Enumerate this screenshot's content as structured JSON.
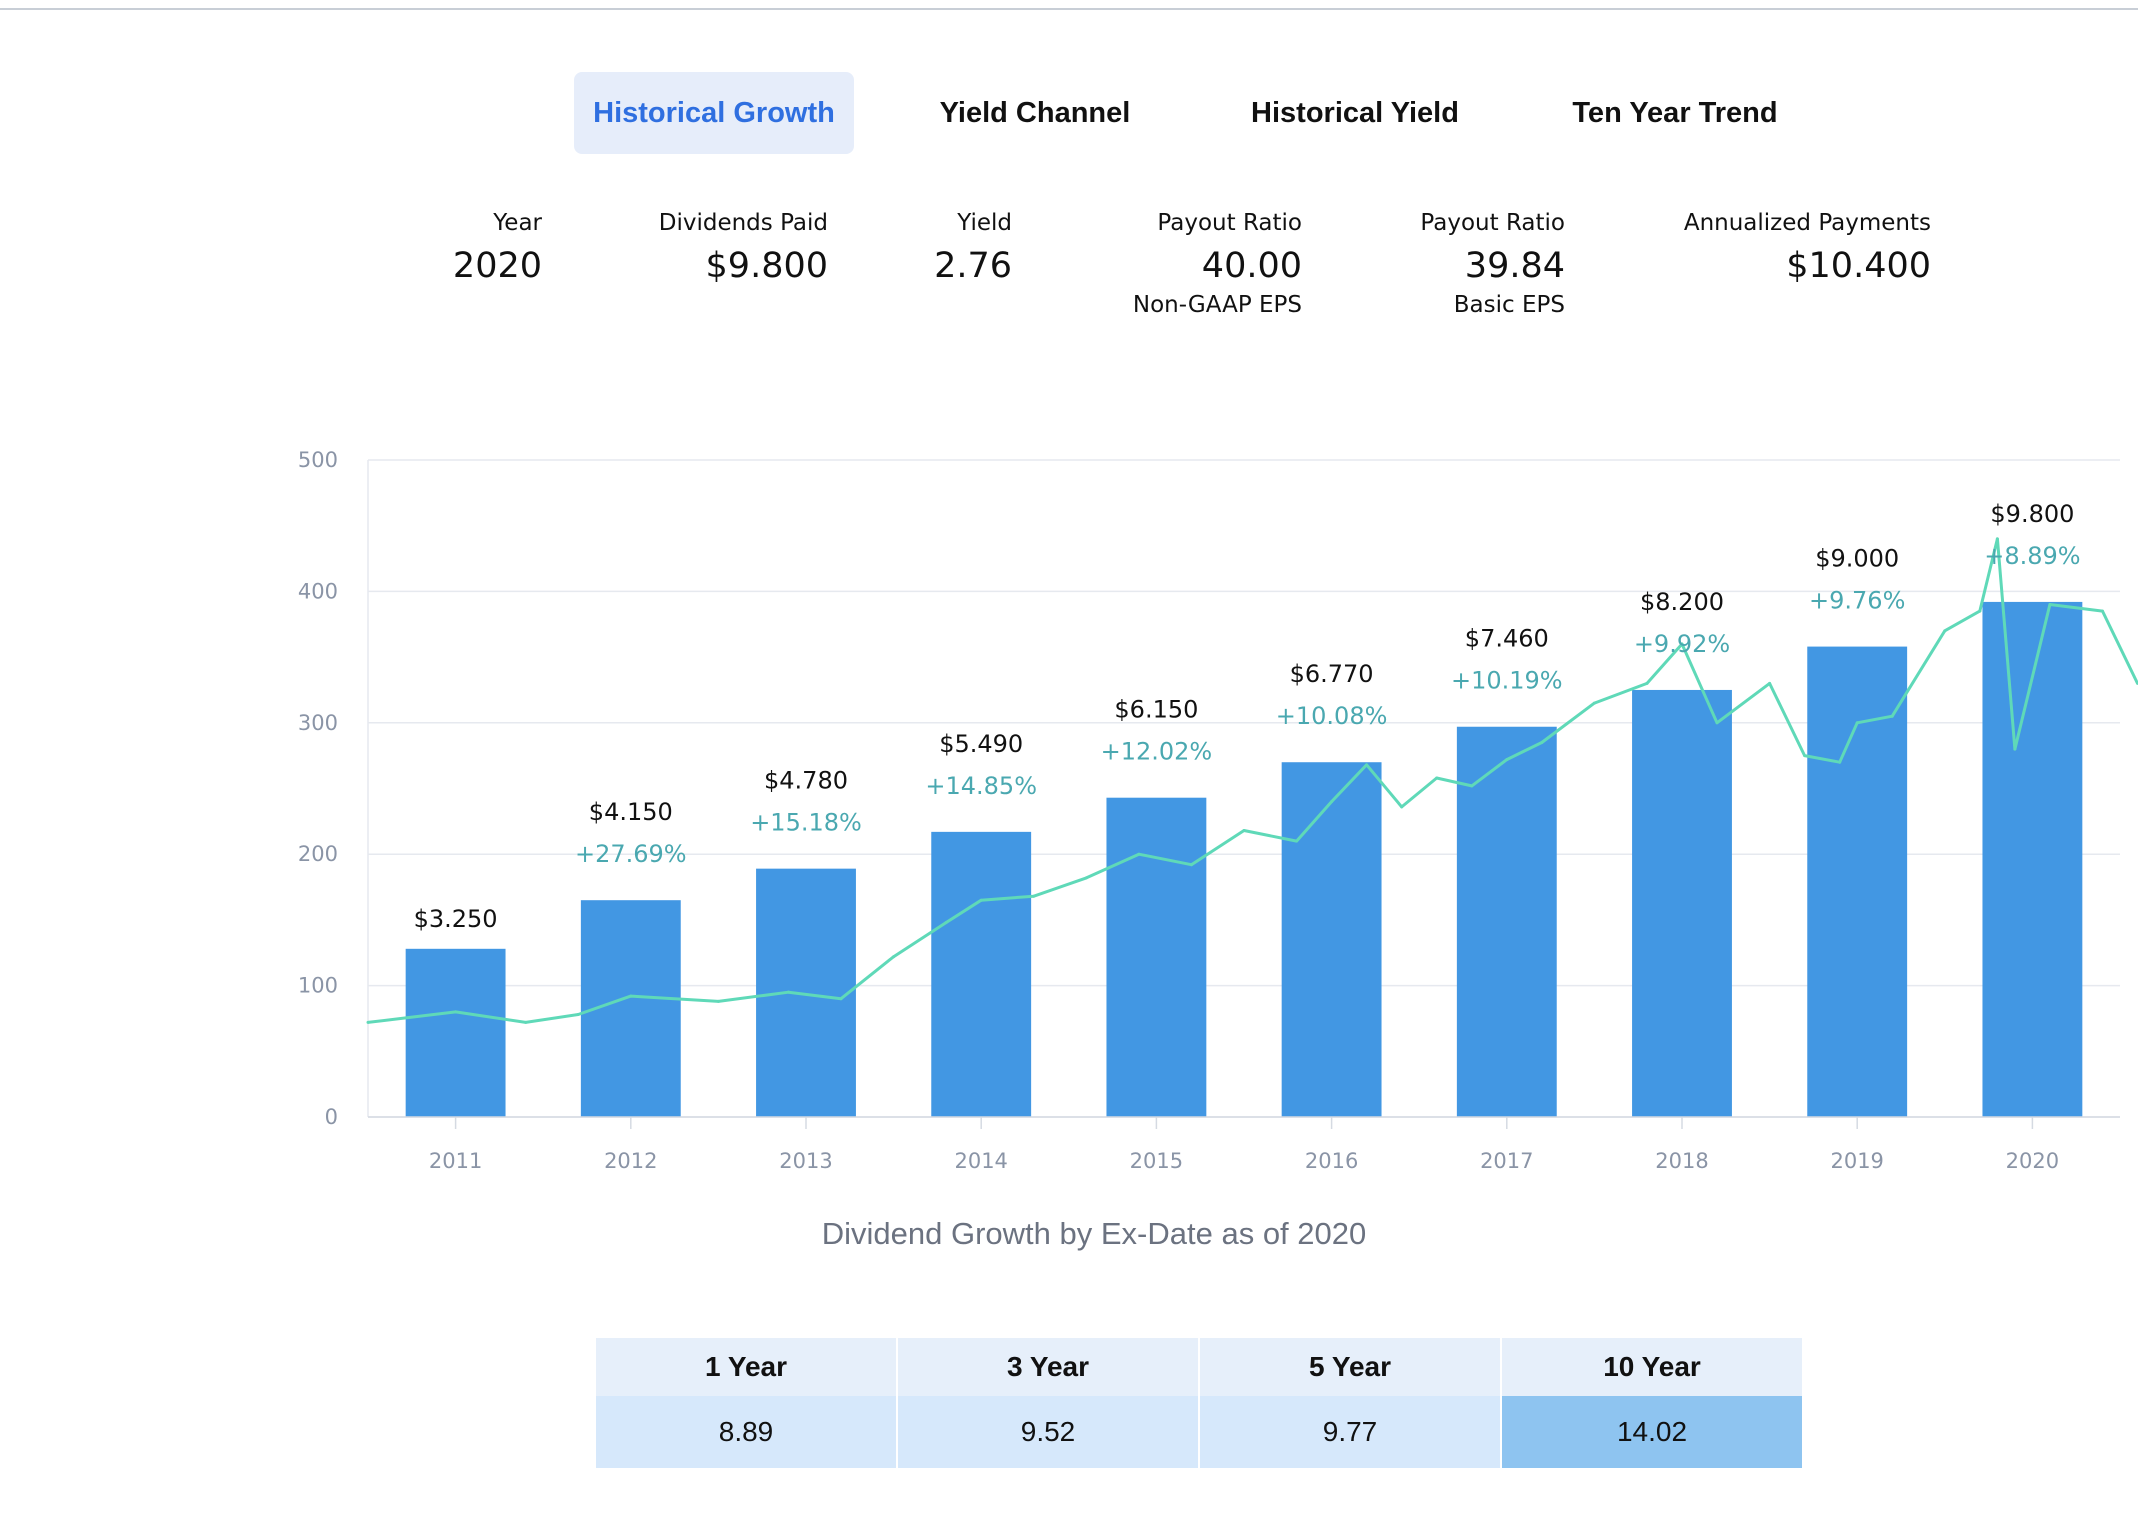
{
  "tabs": [
    {
      "label": "Historical Growth",
      "active": true
    },
    {
      "label": "Yield Channel",
      "active": false
    },
    {
      "label": "Historical Yield",
      "active": false
    },
    {
      "label": "Ten Year Trend",
      "active": false
    }
  ],
  "stats": {
    "year": {
      "label": "Year",
      "value": "2020"
    },
    "dividends_paid": {
      "label": "Dividends Paid",
      "value": "$9.800"
    },
    "yield": {
      "label": "Yield",
      "value": "2.76"
    },
    "payout_non_gaap": {
      "label": "Payout Ratio",
      "value": "40.00",
      "sub": "Non-GAAP EPS"
    },
    "payout_basic": {
      "label": "Payout Ratio",
      "value": "39.84",
      "sub": "Basic EPS"
    },
    "annualized": {
      "label": "Annualized Payments",
      "value": "$10.400"
    }
  },
  "chart_data": {
    "type": "bar",
    "title": "Dividend Growth by Ex-Date as of 2020",
    "categories": [
      "2011",
      "2012",
      "2013",
      "2014",
      "2015",
      "2016",
      "2017",
      "2018",
      "2019",
      "2020"
    ],
    "ylim": [
      0,
      500
    ],
    "yticks": [
      0,
      100,
      200,
      300,
      400,
      500
    ],
    "grid": true,
    "bar_color": "#4297e3",
    "line_color": "#5fd9b8",
    "series": [
      {
        "type": "bar",
        "values": [
          128,
          165,
          189,
          217,
          243,
          270,
          297,
          325,
          358,
          392
        ],
        "labels": [
          "$3.250",
          "$4.150",
          "$4.780",
          "$5.490",
          "$6.150",
          "$6.770",
          "$7.460",
          "$8.200",
          "$9.000",
          "$9.800"
        ],
        "growth": [
          "",
          "+27.69%",
          "+15.18%",
          "+14.85%",
          "+12.02%",
          "+10.08%",
          "+10.19%",
          "+9.92%",
          "+9.76%",
          "+8.89%"
        ]
      },
      {
        "type": "line",
        "x": [
          2010.5,
          2011.0,
          2011.4,
          2011.7,
          2012.0,
          2012.5,
          2012.9,
          2013.2,
          2013.5,
          2013.8,
          2014.0,
          2014.3,
          2014.6,
          2014.9,
          2015.2,
          2015.5,
          2015.8,
          2016.0,
          2016.2,
          2016.4,
          2016.6,
          2016.8,
          2017.0,
          2017.2,
          2017.5,
          2017.8,
          2018.0,
          2018.2,
          2018.5,
          2018.7,
          2018.9,
          2019.0,
          2019.2,
          2019.5,
          2019.7,
          2019.8,
          2019.9,
          2020.1,
          2020.4,
          2020.6
        ],
        "values": [
          72,
          80,
          72,
          78,
          92,
          88,
          95,
          90,
          122,
          148,
          165,
          168,
          182,
          200,
          192,
          218,
          210,
          240,
          268,
          236,
          258,
          252,
          272,
          285,
          315,
          330,
          360,
          300,
          330,
          275,
          270,
          300,
          305,
          370,
          385,
          440,
          280,
          390,
          385,
          330
        ]
      }
    ]
  },
  "growth_table": {
    "headers": [
      "1 Year",
      "3 Year",
      "5 Year",
      "10 Year"
    ],
    "values": [
      "8.89",
      "9.52",
      "9.77",
      "14.02"
    ]
  }
}
